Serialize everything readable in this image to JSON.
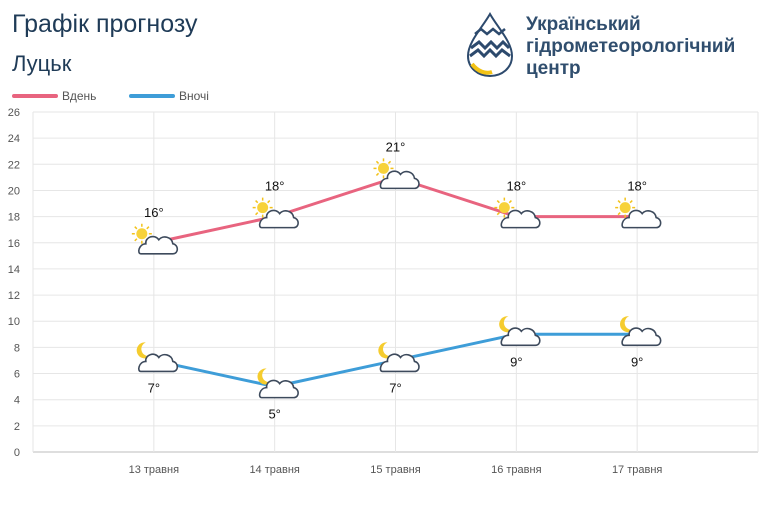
{
  "header": {
    "title": "Графік прогнозу",
    "city": "Луцьк"
  },
  "logo": {
    "line1": "Український",
    "line2": "гідрометеорологічний",
    "line3": "центр",
    "icon": "water-drop-logo-icon",
    "colors": {
      "blue": "#2d4a6d",
      "yellow": "#f3c316"
    }
  },
  "chart_data": {
    "type": "line",
    "categories": [
      "13 травня",
      "14 травня",
      "15 травня",
      "16 травня",
      "17 травня"
    ],
    "ylim": [
      0,
      26
    ],
    "yticks": [
      0,
      2,
      4,
      6,
      8,
      10,
      12,
      14,
      16,
      18,
      20,
      22,
      24,
      26
    ],
    "grid": true,
    "legend": "top-left",
    "series": [
      {
        "name": "Вдень",
        "color": "#e8647f",
        "values": [
          16,
          18,
          21,
          18,
          18
        ],
        "labels": [
          "16°",
          "18°",
          "21°",
          "18°",
          "18°"
        ],
        "label_position": "above",
        "icons": [
          "sun-cloud-icon",
          "sun-cloud-icon",
          "sun-cloud-icon",
          "sun-cloud-icon",
          "sun-cloud-icon"
        ]
      },
      {
        "name": "Вночі",
        "color": "#3e9dd8",
        "values": [
          7,
          5,
          7,
          9,
          9
        ],
        "labels": [
          "7°",
          "5°",
          "7°",
          "9°",
          "9°"
        ],
        "label_position": "below",
        "icons": [
          "moon-cloud-icon",
          "moon-cloud-icon",
          "moon-cloud-icon",
          "moon-cloud-icon",
          "moon-cloud-icon"
        ]
      }
    ]
  }
}
